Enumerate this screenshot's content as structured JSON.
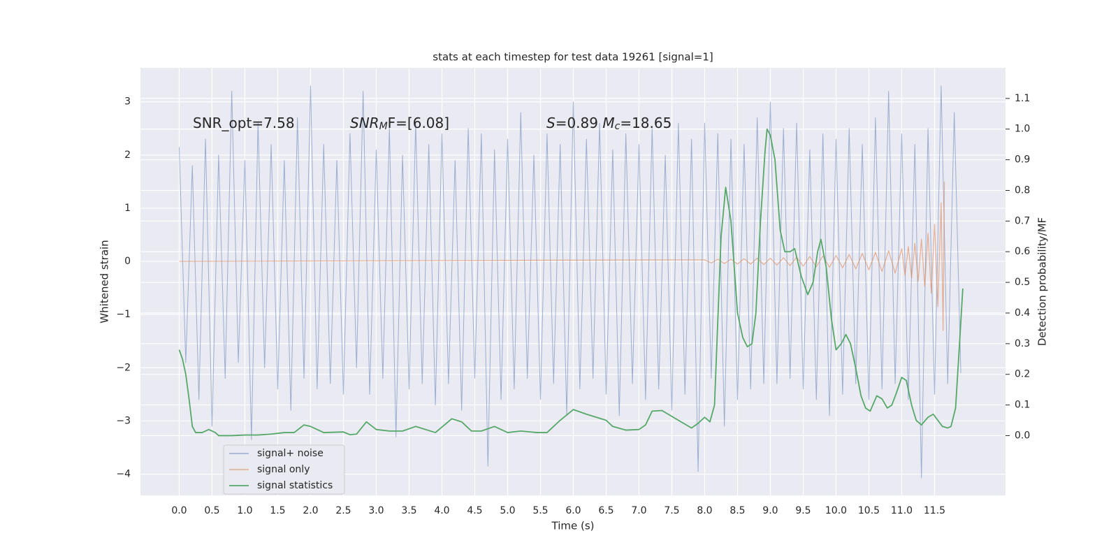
{
  "chart_data": {
    "type": "line",
    "title": "stats at each timestep for test data 19261 [signal=1]",
    "xlabel": "Time (s)",
    "ylabel": "Whitened strain",
    "y2label": "Detection probability/MF",
    "annotations": [
      [
        "SNR_opt=7.58"
      ],
      [
        "SNR",
        "M",
        "F=[6.08]"
      ],
      [
        "S",
        "=0.89   ",
        "M",
        "c",
        "=18.65"
      ]
    ],
    "xlim": [
      -0.59,
      12.58
    ],
    "xticks": [
      {
        "value": 0,
        "label": "0.0"
      },
      0.5,
      {
        "value": 1,
        "label": "1.0"
      },
      1.5,
      {
        "value": 2,
        "label": "2.0"
      },
      2.5,
      {
        "value": 3,
        "label": "3.0"
      },
      3.5,
      {
        "value": 4,
        "label": "4.0"
      },
      4.5,
      {
        "value": 5,
        "label": "5.0"
      },
      5.5,
      {
        "value": 6,
        "label": "6.0"
      },
      6.5,
      {
        "value": 7,
        "label": "7.0"
      },
      7.5,
      {
        "value": 8,
        "label": "8.0"
      },
      8.5,
      {
        "value": 9,
        "label": "9.0"
      },
      9.5,
      {
        "value": 10,
        "label": "10.0"
      },
      10.5,
      {
        "value": 11,
        "label": "11.0"
      },
      11.5
    ],
    "ylim": [
      -4.4,
      3.64
    ],
    "yticks": [
      {
        "value": -4,
        "label": "−4"
      },
      {
        "value": -3,
        "label": "−3"
      },
      {
        "value": -2,
        "label": "−2"
      },
      {
        "value": -1,
        "label": "−1"
      },
      0,
      1,
      2,
      3
    ],
    "y2lim": [
      -0.195,
      1.2
    ],
    "y2ticks": [
      {
        "value": 0,
        "label": "0.0"
      },
      0.1,
      0.2,
      0.3,
      0.4,
      0.5,
      0.6,
      0.7,
      0.8,
      0.9,
      {
        "value": 1,
        "label": "1.0"
      },
      1.1
    ],
    "grid": true,
    "legend": "lower left",
    "series": [
      {
        "name": "signal+ noise",
        "color": "#4c72b0",
        "x": [
          0,
          0.1,
          0.2,
          0.3,
          0.4,
          0.5,
          0.6,
          0.7,
          0.8,
          0.9,
          1,
          1.1,
          1.2,
          1.3,
          1.4,
          1.5,
          1.6,
          1.7,
          1.8,
          1.9,
          2,
          2.1,
          2.2,
          2.3,
          2.4,
          2.5,
          2.6,
          2.7,
          2.8,
          2.9,
          3,
          3.1,
          3.2,
          3.3,
          3.4,
          3.5,
          3.6,
          3.7,
          3.8,
          3.9,
          4,
          4.1,
          4.2,
          4.3,
          4.4,
          4.5,
          4.6,
          4.7,
          4.8,
          4.9,
          5,
          5.1,
          5.2,
          5.3,
          5.4,
          5.5,
          5.6,
          5.7,
          5.8,
          5.9,
          6,
          6.1,
          6.2,
          6.3,
          6.4,
          6.5,
          6.6,
          6.7,
          6.8,
          6.9,
          7,
          7.1,
          7.2,
          7.3,
          7.4,
          7.5,
          7.6,
          7.7,
          7.8,
          7.9,
          8,
          8.1,
          8.2,
          8.3,
          8.4,
          8.5,
          8.6,
          8.7,
          8.8,
          8.9,
          9,
          9.1,
          9.2,
          9.3,
          9.4,
          9.5,
          9.6,
          9.7,
          9.8,
          9.9,
          10,
          10.1,
          10.2,
          10.3,
          10.4,
          10.5,
          10.6,
          10.7,
          10.8,
          10.9,
          11,
          11.1,
          11.2,
          11.3,
          11.4,
          11.5,
          11.6,
          11.7,
          11.8,
          11.9
        ],
        "values": [
          2.15,
          -1.9,
          1.8,
          -2.6,
          2.3,
          -3.1,
          2.0,
          -2.2,
          3.2,
          -1.9,
          1.9,
          -3.35,
          2.6,
          -2.0,
          2.2,
          -2.4,
          1.9,
          -2.8,
          2.7,
          -2.2,
          3.3,
          -2.4,
          2.2,
          -2.3,
          1.9,
          -2.5,
          2.4,
          -2.0,
          3.2,
          -2.5,
          2.1,
          -2.2,
          2.5,
          -3.3,
          2.0,
          -2.4,
          2.6,
          -2.3,
          2.2,
          -2.7,
          2.4,
          -2.3,
          1.9,
          -2.8,
          2.5,
          -2.2,
          2.4,
          -3.85,
          2.1,
          -2.6,
          2.3,
          -2.4,
          2.8,
          -2.2,
          2.0,
          -2.6,
          2.4,
          -2.3,
          2.2,
          -2.9,
          3.0,
          -2.4,
          2.3,
          -2.2,
          2.6,
          -2.5,
          2.1,
          -2.9,
          2.4,
          -2.3,
          2.2,
          -2.6,
          2.5,
          -2.4,
          2.0,
          -2.8,
          2.6,
          -2.5,
          2.3,
          -3.95,
          2.6,
          -2.2,
          2.4,
          -3.1,
          2.3,
          -2.6,
          2.2,
          -2.4,
          2.7,
          -2.3,
          3.0,
          -2.3,
          2.5,
          -2.2,
          2.6,
          -2.4,
          2.1,
          -2.6,
          2.4,
          -2.9,
          2.3,
          -2.5,
          2.5,
          -2.3,
          2.2,
          -2.6,
          2.7,
          -2.4,
          3.2,
          -2.3,
          2.4,
          -2.6,
          2.2,
          -4.07,
          2.5,
          -2.5,
          3.3,
          -2.3,
          2.8,
          -2.1
        ]
      },
      {
        "name": "signal only",
        "color": "#dd8452",
        "x": [
          0,
          8,
          8.1,
          8.2,
          8.3,
          8.4,
          8.5,
          8.6,
          8.7,
          8.8,
          8.9,
          9,
          9.1,
          9.2,
          9.3,
          9.4,
          9.5,
          9.6,
          9.7,
          9.8,
          9.9,
          10,
          10.1,
          10.2,
          10.3,
          10.4,
          10.5,
          10.6,
          10.7,
          10.8,
          10.9,
          11,
          11.05,
          11.1,
          11.15,
          11.2,
          11.25,
          11.3,
          11.35,
          11.4,
          11.45,
          11.5,
          11.55,
          11.6,
          11.63,
          11.65
        ],
        "values": [
          0,
          0.03,
          -0.03,
          0.04,
          -0.04,
          0.04,
          -0.05,
          0.05,
          -0.05,
          0.06,
          -0.06,
          0.06,
          -0.07,
          0.07,
          -0.08,
          0.08,
          -0.09,
          0.09,
          -0.1,
          0.1,
          -0.11,
          0.11,
          -0.12,
          0.13,
          -0.14,
          0.15,
          -0.16,
          0.17,
          -0.19,
          0.2,
          -0.22,
          0.24,
          -0.26,
          0.28,
          -0.31,
          0.34,
          -0.38,
          0.42,
          -0.47,
          0.53,
          -0.6,
          0.7,
          -0.85,
          1.1,
          -1.3,
          1.5
        ]
      },
      {
        "name": "signal statistics",
        "color": "#55a868",
        "axis": "y2",
        "x": [
          0,
          0.05,
          0.1,
          0.15,
          0.2,
          0.25,
          0.35,
          0.45,
          0.55,
          0.6,
          0.8,
          1,
          1.2,
          1.4,
          1.6,
          1.75,
          1.9,
          2,
          2.2,
          2.5,
          2.6,
          2.7,
          2.85,
          3,
          3.2,
          3.4,
          3.6,
          3.9,
          4.15,
          4.3,
          4.45,
          4.6,
          4.8,
          5,
          5.2,
          5.45,
          5.6,
          5.8,
          6,
          6.2,
          6.5,
          6.6,
          6.8,
          7,
          7.1,
          7.2,
          7.35,
          7.6,
          7.8,
          7.9,
          8,
          8.08,
          8.15,
          8.25,
          8.32,
          8.4,
          8.5,
          8.58,
          8.65,
          8.72,
          8.78,
          8.85,
          8.92,
          8.95,
          9,
          9.07,
          9.15,
          9.22,
          9.3,
          9.37,
          9.47,
          9.57,
          9.65,
          9.72,
          9.77,
          9.85,
          9.93,
          10,
          10.08,
          10.15,
          10.22,
          10.3,
          10.38,
          10.45,
          10.52,
          10.62,
          10.7,
          10.78,
          10.85,
          10.92,
          11,
          11.07,
          11.15,
          11.22,
          11.3,
          11.4,
          11.48,
          11.55,
          11.62,
          11.7,
          11.75,
          11.82,
          11.88,
          11.93
        ],
        "values": [
          0.28,
          0.25,
          0.2,
          0.12,
          0.03,
          0.01,
          0.01,
          0.02,
          0.01,
          0.0,
          0.0,
          0.002,
          0.002,
          0.005,
          0.01,
          0.01,
          0.035,
          0.03,
          0.01,
          0.012,
          0.003,
          0.005,
          0.045,
          0.02,
          0.015,
          0.015,
          0.03,
          0.01,
          0.055,
          0.045,
          0.015,
          0.015,
          0.03,
          0.01,
          0.015,
          0.01,
          0.01,
          0.05,
          0.085,
          0.07,
          0.05,
          0.03,
          0.018,
          0.02,
          0.035,
          0.08,
          0.082,
          0.05,
          0.025,
          0.04,
          0.06,
          0.045,
          0.1,
          0.65,
          0.81,
          0.7,
          0.4,
          0.32,
          0.29,
          0.3,
          0.4,
          0.7,
          0.93,
          1.0,
          0.98,
          0.9,
          0.67,
          0.6,
          0.6,
          0.61,
          0.52,
          0.46,
          0.5,
          0.6,
          0.64,
          0.55,
          0.38,
          0.28,
          0.3,
          0.33,
          0.3,
          0.22,
          0.13,
          0.09,
          0.08,
          0.13,
          0.12,
          0.09,
          0.1,
          0.14,
          0.19,
          0.18,
          0.1,
          0.05,
          0.035,
          0.06,
          0.07,
          0.05,
          0.03,
          0.025,
          0.03,
          0.09,
          0.3,
          0.48
        ]
      }
    ]
  }
}
